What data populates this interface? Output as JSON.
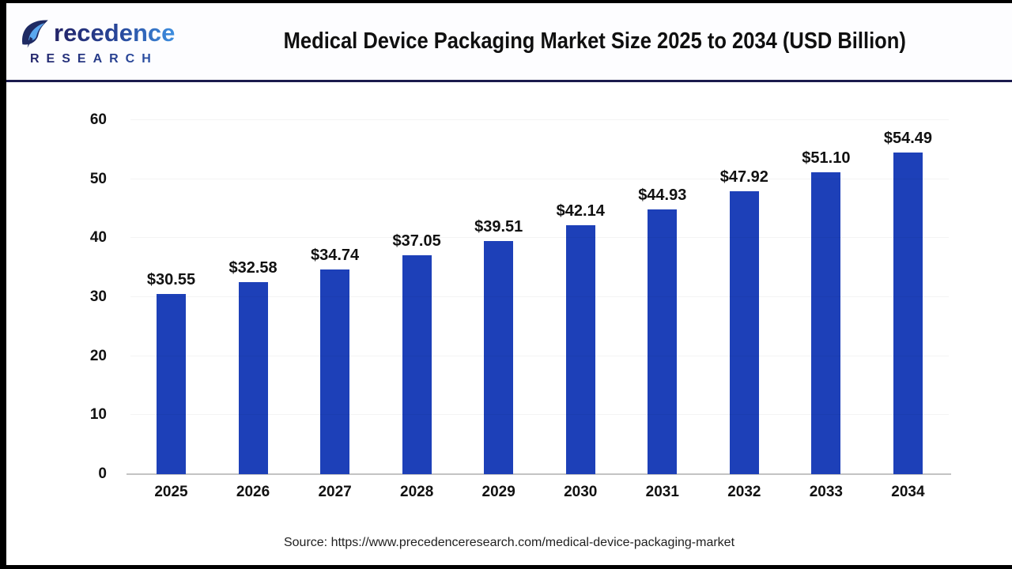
{
  "header": {
    "logo": {
      "brand": "Precedence",
      "word_rest": "recedence",
      "subtitle": "RESEARCH"
    },
    "title": "Medical Device Packaging Market Size 2025 to 2034 (USD Billion)"
  },
  "chart_data": {
    "type": "bar",
    "title": "Medical Device Packaging Market Size 2025 to 2034 (USD Billion)",
    "categories": [
      "2025",
      "2026",
      "2027",
      "2028",
      "2029",
      "2030",
      "2031",
      "2032",
      "2033",
      "2034"
    ],
    "values": [
      30.55,
      32.58,
      34.74,
      37.05,
      39.51,
      42.14,
      44.93,
      47.92,
      51.1,
      54.49
    ],
    "value_labels": [
      "$30.55",
      "$32.58",
      "$34.74",
      "$37.05",
      "$39.51",
      "$42.14",
      "$44.93",
      "$47.92",
      "$51.10",
      "$54.49"
    ],
    "xlabel": "",
    "ylabel": "",
    "ylim": [
      0,
      60
    ],
    "yticks": [
      0,
      10,
      20,
      30,
      40,
      50,
      60
    ],
    "legend": "none",
    "grid": "faint-horizontal",
    "bar_color": "#1d40b8"
  },
  "footer": {
    "source": "Source: https://www.precedenceresearch.com/medical-device-packaging-market"
  },
  "colors": {
    "bar": "#1d40b8",
    "header_divider": "#1b1b4e",
    "logo_dark": "#232266",
    "logo_light": "#3e8fe0",
    "axis_line": "#c3c3c3",
    "frame_border": "#000000"
  }
}
